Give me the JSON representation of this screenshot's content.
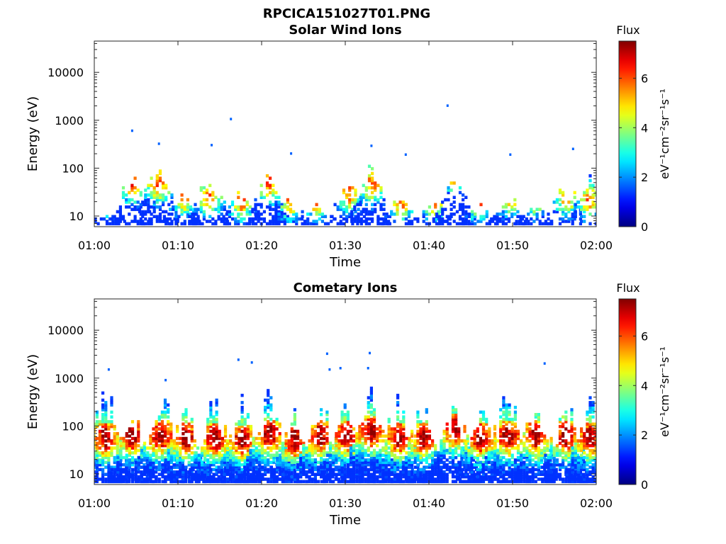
{
  "figure_title": "RPCICA151027T01.PNG",
  "chart_data": [
    {
      "type": "heatmap",
      "title": "Solar Wind Ions",
      "xlabel": "Time",
      "ylabel": "Energy (eV)",
      "x_ticks": [
        "01:00",
        "01:10",
        "01:20",
        "01:30",
        "01:40",
        "01:50",
        "02:00"
      ],
      "xlim": [
        0,
        60
      ],
      "y_scale": "log",
      "ylim": [
        6,
        45000
      ],
      "y_ticks": [
        10,
        100,
        1000,
        10000
      ],
      "y_tick_labels": [
        "10",
        "100",
        "1000",
        "10000"
      ],
      "colorbar": {
        "title": "Flux",
        "label": "eV⁻¹cm⁻²sr⁻¹s⁻¹",
        "range": [
          0,
          7.5
        ],
        "ticks": [
          0,
          2,
          4,
          6
        ],
        "tick_labels": [
          "0",
          "2",
          "4",
          "6"
        ],
        "colormap": "jet"
      },
      "bursts": [
        [
          1.3,
          2.4,
          25,
          12
        ],
        [
          4.3,
          2.4,
          45,
          90
        ],
        [
          7.5,
          2.6,
          45,
          220
        ],
        [
          10.6,
          2.4,
          25,
          40
        ],
        [
          13.6,
          2.4,
          25,
          100
        ],
        [
          17.5,
          2.2,
          20,
          50
        ],
        [
          20.8,
          2.4,
          45,
          120
        ],
        [
          23.2,
          2.0,
          20,
          30
        ],
        [
          26.5,
          2.2,
          20,
          20
        ],
        [
          30.3,
          2.4,
          30,
          120
        ],
        [
          33.0,
          2.4,
          45,
          200
        ],
        [
          36.5,
          2.2,
          20,
          40
        ],
        [
          40.5,
          2.0,
          20,
          30
        ],
        [
          43.0,
          2.6,
          75,
          80
        ],
        [
          45.8,
          2.2,
          20,
          20
        ],
        [
          49.5,
          2.2,
          25,
          30
        ],
        [
          52.5,
          2.2,
          25,
          20
        ],
        [
          56.3,
          2.2,
          25,
          80
        ],
        [
          59.0,
          2.0,
          20,
          150
        ]
      ],
      "isolated_points": [
        [
          4.4,
          600
        ],
        [
          16.2,
          1050
        ],
        [
          42.1,
          2000
        ],
        [
          7.6,
          320
        ],
        [
          13.9,
          300
        ],
        [
          23.4,
          200
        ],
        [
          33.0,
          290
        ],
        [
          37.1,
          190
        ],
        [
          49.6,
          190
        ],
        [
          57.1,
          250
        ]
      ]
    },
    {
      "type": "heatmap",
      "title": "Cometary Ions",
      "xlabel": "Time",
      "ylabel": "Energy (eV)",
      "x_ticks": [
        "01:00",
        "01:10",
        "01:20",
        "01:30",
        "01:40",
        "01:50",
        "02:00"
      ],
      "xlim": [
        0,
        60
      ],
      "y_scale": "log",
      "ylim": [
        6,
        45000
      ],
      "y_ticks": [
        10,
        100,
        1000,
        10000
      ],
      "y_tick_labels": [
        "10",
        "100",
        "1000",
        "10000"
      ],
      "colorbar": {
        "title": "Flux",
        "label": "eV⁻¹cm⁻²sr⁻¹s⁻¹",
        "range": [
          0,
          7.5
        ],
        "ticks": [
          0,
          2,
          4,
          6
        ],
        "tick_labels": [
          "0",
          "2",
          "4",
          "6"
        ],
        "colormap": "jet"
      },
      "bursts": [
        [
          1.2,
          2.8,
          55,
          1200
        ],
        [
          4.4,
          2.8,
          60,
          300
        ],
        [
          7.8,
          3.0,
          60,
          800
        ],
        [
          10.8,
          2.8,
          55,
          500
        ],
        [
          14.3,
          3.0,
          55,
          600
        ],
        [
          17.5,
          2.8,
          50,
          500
        ],
        [
          20.8,
          3.0,
          65,
          700
        ],
        [
          23.8,
          2.8,
          50,
          300
        ],
        [
          26.8,
          3.0,
          60,
          600
        ],
        [
          30.0,
          3.0,
          60,
          500
        ],
        [
          33.0,
          3.2,
          75,
          900
        ],
        [
          36.3,
          3.0,
          55,
          700
        ],
        [
          39.2,
          2.8,
          55,
          500
        ],
        [
          42.9,
          3.0,
          85,
          400
        ],
        [
          46.0,
          2.8,
          55,
          600
        ],
        [
          49.3,
          3.0,
          60,
          900
        ],
        [
          52.6,
          2.8,
          60,
          500
        ],
        [
          56.2,
          2.8,
          60,
          600
        ],
        [
          59.1,
          2.8,
          55,
          500
        ]
      ],
      "isolated_points": [
        [
          17.1,
          2400
        ],
        [
          18.7,
          2100
        ],
        [
          27.7,
          3200
        ],
        [
          28.0,
          1500
        ],
        [
          29.3,
          1600
        ],
        [
          32.8,
          3300
        ],
        [
          32.6,
          1600
        ],
        [
          53.7,
          2000
        ],
        [
          8.4,
          900
        ],
        [
          1.6,
          1500
        ]
      ]
    }
  ]
}
